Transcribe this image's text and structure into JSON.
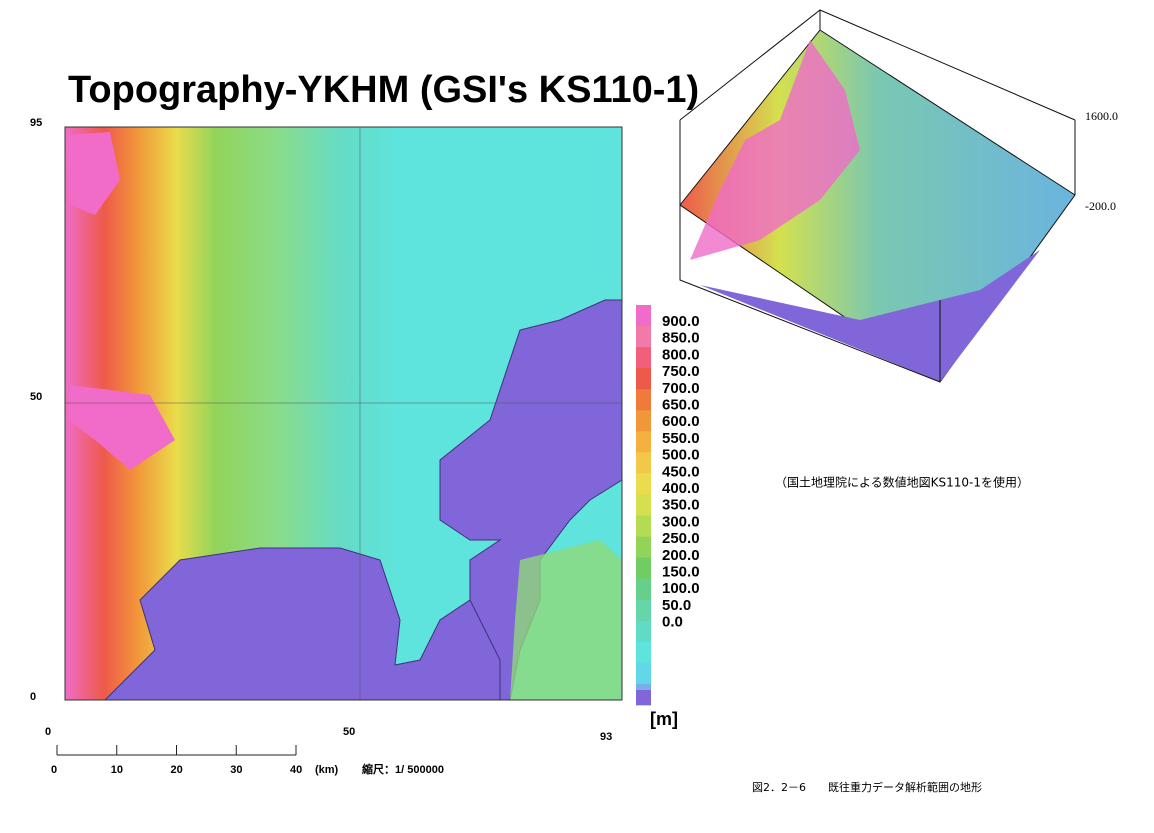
{
  "title": "Topography-YKHM (GSI's KS110-1)",
  "map": {
    "y_ticks": [
      "95",
      "50",
      "0"
    ],
    "x_ticks": [
      "0",
      "50",
      "93"
    ]
  },
  "legend": {
    "unit": "[m]",
    "items": [
      {
        "label": "900.0",
        "color": "#f06cc8"
      },
      {
        "label": "850.0",
        "color": "#f27aa8"
      },
      {
        "label": "800.0",
        "color": "#f0607a"
      },
      {
        "label": "750.0",
        "color": "#ee5a4a"
      },
      {
        "label": "700.0",
        "color": "#f07a3c"
      },
      {
        "label": "650.0",
        "color": "#f2963a"
      },
      {
        "label": "600.0",
        "color": "#f4b040"
      },
      {
        "label": "550.0",
        "color": "#f2c84a"
      },
      {
        "label": "500.0",
        "color": "#eadc4c"
      },
      {
        "label": "450.0",
        "color": "#d4e04e"
      },
      {
        "label": "400.0",
        "color": "#b4dc52"
      },
      {
        "label": "350.0",
        "color": "#92d45a"
      },
      {
        "label": "300.0",
        "color": "#72cc64"
      },
      {
        "label": "250.0",
        "color": "#66d08a"
      },
      {
        "label": "200.0",
        "color": "#64d6a8"
      },
      {
        "label": "150.0",
        "color": "#60dcc4"
      },
      {
        "label": "100.0",
        "color": "#5ee4dc"
      },
      {
        "label": "50.0",
        "color": "#60d8e8"
      },
      {
        "label": "0.0",
        "color": "#7aaee8"
      }
    ]
  },
  "scale_bar": {
    "ticks": [
      "0",
      "10",
      "20",
      "30",
      "40"
    ],
    "unit": "(km)",
    "scale": "縮尺：1/ 500000"
  },
  "view_3d": {
    "top_label": "1600.0",
    "bottom_label": "-200.0"
  },
  "note": "（国土地理院による数値地図KS110-1を使用）",
  "caption": "図2．2－6　　既往重力データ解析範囲の地形"
}
